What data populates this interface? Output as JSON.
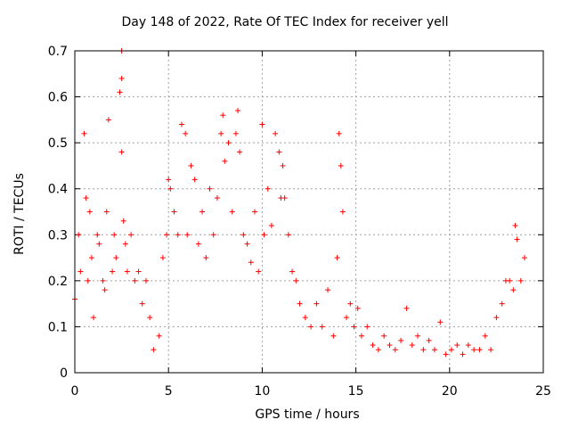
{
  "chart_data": {
    "type": "scatter",
    "title": "Day 148 of 2022, Rate Of TEC Index for receiver yell",
    "xlabel": "GPS time / hours",
    "ylabel": "ROTI / TECUs",
    "xlim": [
      0,
      25
    ],
    "ylim": [
      0,
      0.7
    ],
    "xticks": [
      0,
      5,
      10,
      15,
      20,
      25
    ],
    "xtick_labels": [
      "0",
      "5",
      "10",
      "15",
      "20",
      "25"
    ],
    "yticks": [
      0,
      0.1,
      0.2,
      0.3,
      0.4,
      0.5,
      0.6,
      0.7
    ],
    "ytick_labels": [
      "0",
      "0.1",
      "0.2",
      "0.3",
      "0.4",
      "0.5",
      "0.6",
      "0.7"
    ],
    "grid": true,
    "marker": "+",
    "color": "#ff0000",
    "series": [
      {
        "name": "ROTI",
        "x": [
          0.0,
          0.2,
          0.3,
          0.5,
          0.6,
          0.7,
          0.8,
          0.9,
          1.0,
          1.2,
          1.3,
          1.5,
          1.6,
          1.7,
          1.8,
          2.0,
          2.1,
          2.2,
          2.4,
          2.5,
          2.5,
          2.5,
          2.6,
          2.7,
          2.8,
          3.0,
          3.2,
          3.4,
          3.6,
          3.8,
          4.0,
          4.2,
          4.5,
          4.7,
          4.9,
          5.0,
          5.1,
          5.3,
          5.5,
          5.7,
          5.9,
          6.0,
          6.2,
          6.4,
          6.6,
          6.8,
          7.0,
          7.2,
          7.4,
          7.6,
          7.8,
          7.9,
          8.0,
          8.2,
          8.4,
          8.6,
          8.7,
          8.8,
          9.0,
          9.2,
          9.4,
          9.6,
          9.8,
          10.0,
          10.1,
          10.3,
          10.5,
          10.7,
          10.9,
          11.0,
          11.1,
          11.2,
          11.4,
          11.6,
          11.8,
          12.0,
          12.3,
          12.6,
          12.9,
          13.2,
          13.5,
          13.8,
          14.0,
          14.1,
          14.2,
          14.3,
          14.5,
          14.7,
          14.9,
          15.1,
          15.3,
          15.6,
          15.9,
          16.2,
          16.5,
          16.8,
          17.1,
          17.4,
          17.7,
          18.0,
          18.3,
          18.6,
          18.9,
          19.2,
          19.5,
          19.8,
          20.1,
          20.4,
          20.7,
          21.0,
          21.3,
          21.6,
          21.9,
          22.2,
          22.5,
          22.8,
          23.0,
          23.2,
          23.4,
          23.5,
          23.6,
          23.8,
          24.0
        ],
        "y": [
          0.16,
          0.3,
          0.22,
          0.52,
          0.38,
          0.2,
          0.35,
          0.25,
          0.12,
          0.3,
          0.28,
          0.2,
          0.18,
          0.35,
          0.55,
          0.22,
          0.3,
          0.25,
          0.61,
          0.7,
          0.64,
          0.48,
          0.33,
          0.28,
          0.22,
          0.3,
          0.2,
          0.22,
          0.15,
          0.2,
          0.12,
          0.05,
          0.08,
          0.25,
          0.3,
          0.42,
          0.4,
          0.35,
          0.3,
          0.54,
          0.52,
          0.3,
          0.45,
          0.42,
          0.28,
          0.35,
          0.25,
          0.4,
          0.3,
          0.38,
          0.52,
          0.56,
          0.46,
          0.5,
          0.35,
          0.52,
          0.57,
          0.48,
          0.3,
          0.28,
          0.24,
          0.35,
          0.22,
          0.54,
          0.3,
          0.4,
          0.32,
          0.52,
          0.48,
          0.38,
          0.45,
          0.38,
          0.3,
          0.22,
          0.2,
          0.15,
          0.12,
          0.1,
          0.15,
          0.1,
          0.18,
          0.08,
          0.25,
          0.52,
          0.45,
          0.35,
          0.12,
          0.15,
          0.1,
          0.14,
          0.08,
          0.1,
          0.06,
          0.05,
          0.08,
          0.06,
          0.05,
          0.07,
          0.14,
          0.06,
          0.08,
          0.05,
          0.07,
          0.05,
          0.11,
          0.04,
          0.05,
          0.06,
          0.04,
          0.06,
          0.05,
          0.05,
          0.08,
          0.05,
          0.12,
          0.15,
          0.2,
          0.2,
          0.18,
          0.32,
          0.29,
          0.2,
          0.25
        ]
      }
    ]
  }
}
